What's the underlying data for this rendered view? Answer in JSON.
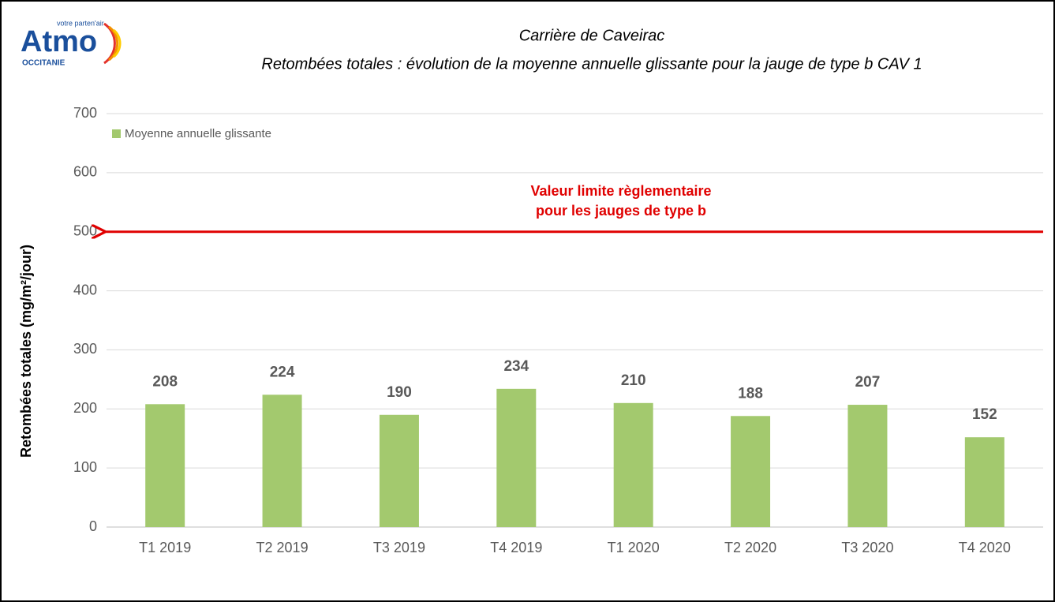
{
  "logo": {
    "name": "Atmo",
    "tagline": "votre parten'air",
    "region": "OCCITANIE"
  },
  "chart_data": {
    "type": "bar",
    "title": "Carrière de Caveirac",
    "subtitle": "Retombées totales : évolution de la moyenne annuelle glissante pour la jauge de type b CAV 1",
    "y_label": "Retombées totales (mg/m²/jour)",
    "categories": [
      "T1 2019",
      "T2 2019",
      "T3 2019",
      "T4 2019",
      "T1 2020",
      "T2 2020",
      "T3 2020",
      "T4 2020"
    ],
    "series": [
      {
        "name": "Moyenne annuelle glissante",
        "color": "#a3c96e",
        "values": [
          208,
          224,
          190,
          234,
          210,
          188,
          207,
          152
        ]
      }
    ],
    "ylim": [
      0,
      700
    ],
    "yticks": [
      0,
      100,
      200,
      300,
      400,
      500,
      600,
      700
    ],
    "grid": true,
    "legend": "top-left",
    "reference_line": {
      "value": 500,
      "color": "#e00000",
      "label": [
        "Valeur limite règlementaire",
        "pour les jauges de type b"
      ]
    }
  }
}
